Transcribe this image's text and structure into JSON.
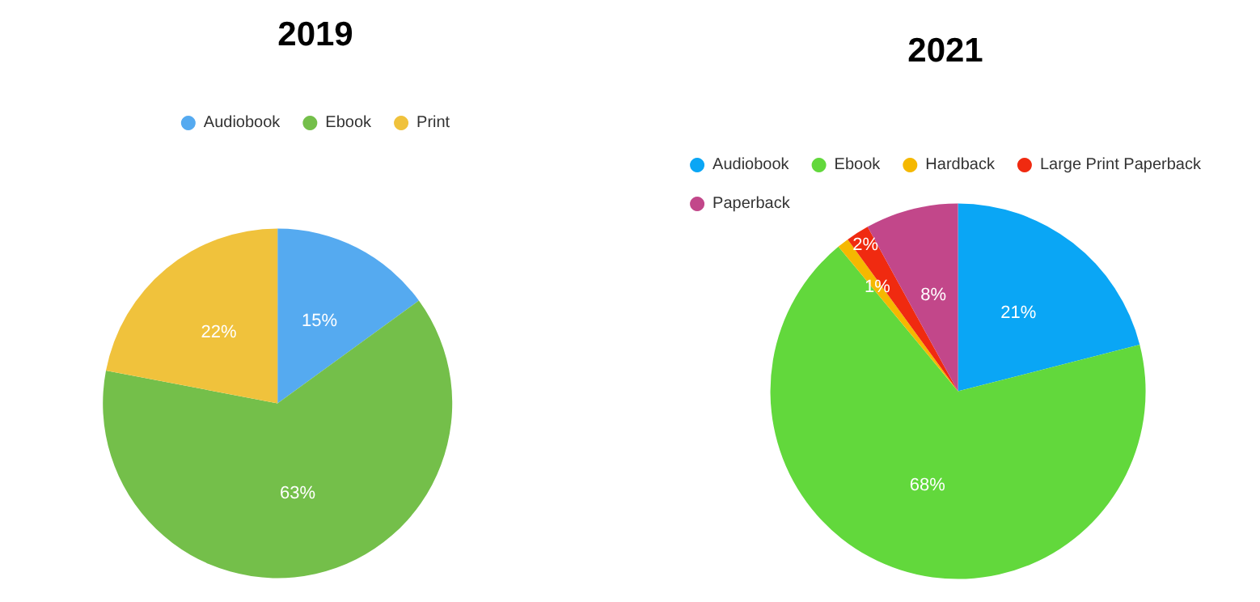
{
  "chart_data": [
    {
      "type": "pie",
      "title": "2019",
      "categories": [
        "Audiobook",
        "Ebook",
        "Print"
      ],
      "values": [
        15,
        63,
        22
      ],
      "value_labels": [
        "15%",
        "63%",
        "22%"
      ],
      "colors": [
        "#55aaf0",
        "#74bf4a",
        "#f0c23c"
      ],
      "legend": "top"
    },
    {
      "type": "pie",
      "title": "2021",
      "categories": [
        "Audiobook",
        "Ebook",
        "Hardback",
        "Large Print Paperback",
        "Paperback"
      ],
      "values": [
        21,
        68,
        1,
        2,
        8
      ],
      "value_labels": [
        "21%",
        "68%",
        "1%",
        "2%",
        "8%"
      ],
      "colors": [
        "#0aa6f5",
        "#62d83c",
        "#f5b800",
        "#f02a10",
        "#c2478a"
      ],
      "legend": "top"
    }
  ]
}
